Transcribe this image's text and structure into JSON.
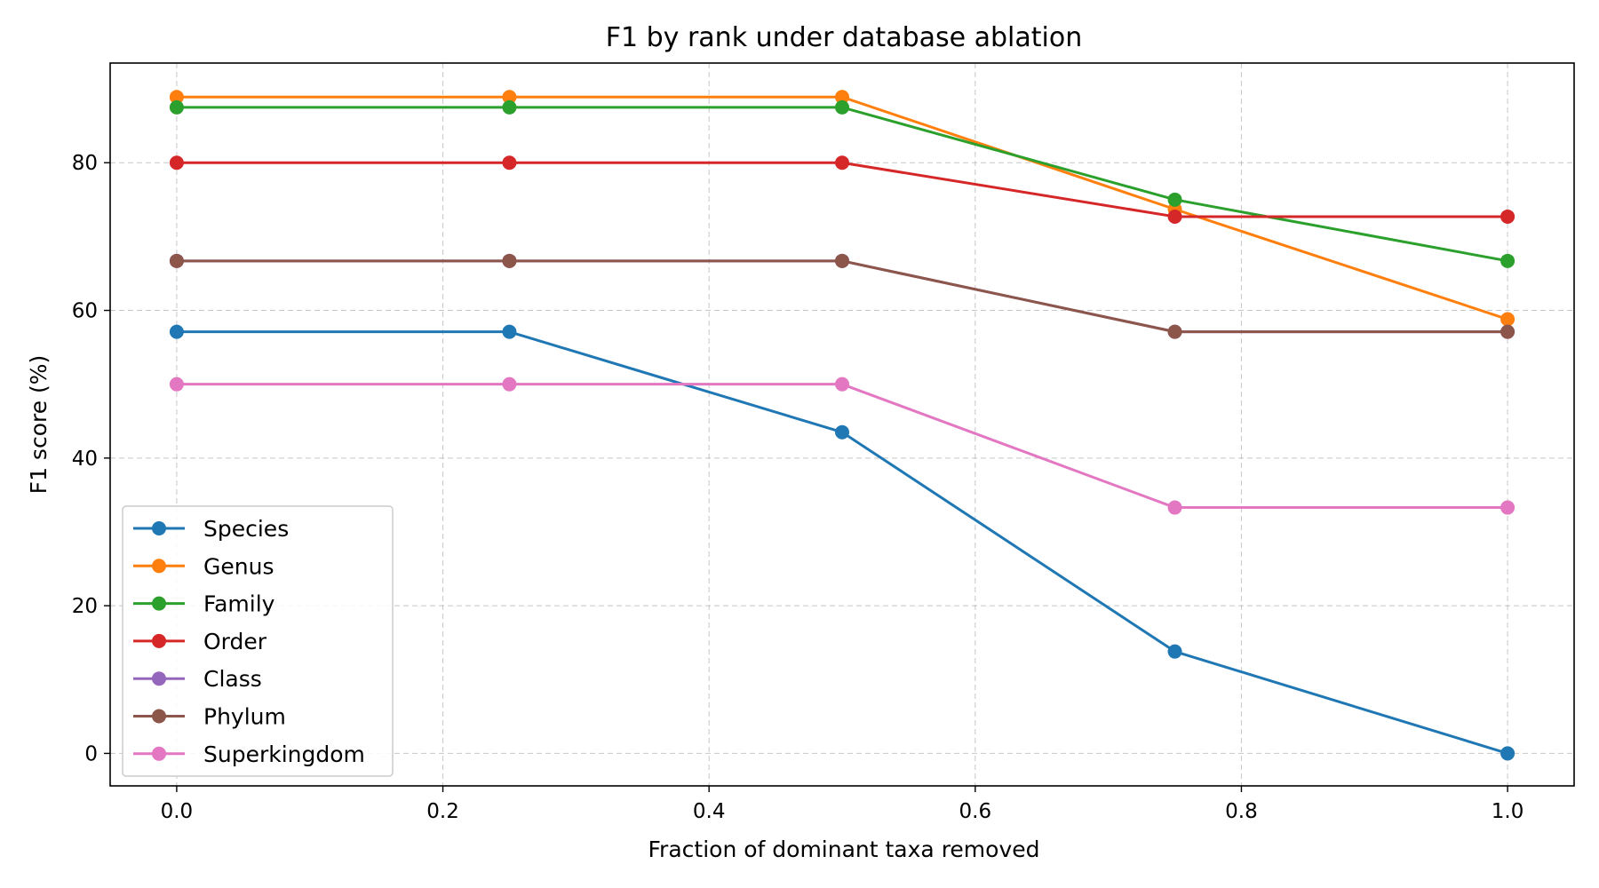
{
  "chart_data": {
    "type": "line",
    "title": "F1 by rank under database ablation",
    "xlabel": "Fraction of dominant taxa removed",
    "ylabel": "F1 score (%)",
    "x": [
      0.0,
      0.25,
      0.5,
      0.75,
      1.0
    ],
    "xlim": [
      -0.05,
      1.05
    ],
    "ylim": [
      -4.4,
      93.5
    ],
    "xticks": [
      "0.0",
      "0.2",
      "0.4",
      "0.6",
      "0.8",
      "1.0"
    ],
    "yticks": [
      "0",
      "20",
      "40",
      "60",
      "80"
    ],
    "grid": true,
    "legend_position": "lower-left",
    "series": [
      {
        "name": "Species",
        "color": "#1f77b4",
        "values": [
          57.1,
          57.1,
          43.5,
          13.8,
          0.0
        ]
      },
      {
        "name": "Genus",
        "color": "#ff7f0e",
        "values": [
          88.9,
          88.9,
          88.9,
          73.7,
          58.8
        ]
      },
      {
        "name": "Family",
        "color": "#2ca02c",
        "values": [
          87.5,
          87.5,
          87.5,
          75.0,
          66.7
        ]
      },
      {
        "name": "Order",
        "color": "#d62728",
        "values": [
          80.0,
          80.0,
          80.0,
          72.7,
          72.7
        ]
      },
      {
        "name": "Class",
        "color": "#9467bd",
        "values": [
          66.7,
          66.7,
          66.7,
          57.1,
          57.1
        ]
      },
      {
        "name": "Phylum",
        "color": "#8c564b",
        "values": [
          66.7,
          66.7,
          66.7,
          57.1,
          57.1
        ]
      },
      {
        "name": "Superkingdom",
        "color": "#e377c2",
        "values": [
          50.0,
          50.0,
          50.0,
          33.3,
          33.3
        ]
      }
    ]
  }
}
